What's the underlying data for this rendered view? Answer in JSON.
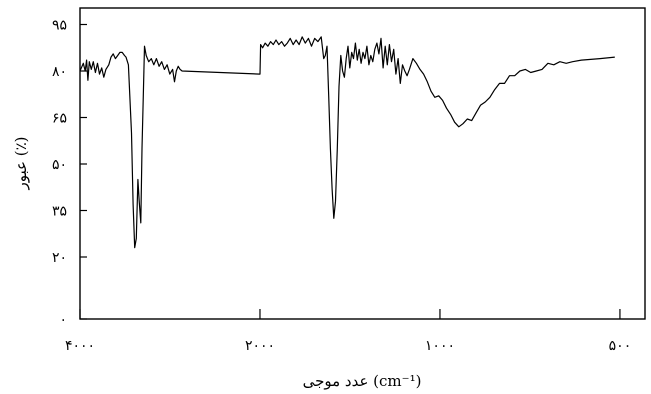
{
  "chart_data": {
    "type": "line",
    "xlabel": "عدد موجی (cm⁻¹)",
    "ylabel": "عبور (٪)",
    "x_tick_labels": [
      "۴۰۰۰",
      "۲۰۰۰",
      "۱۰۰۰",
      "۵۰۰"
    ],
    "x_tick_values": [
      4000,
      2000,
      1000,
      500
    ],
    "y_tick_labels": [
      "۰",
      "۲۰",
      "۳۵",
      "۵۰",
      "۶۵",
      "۸۰",
      "۹۵"
    ],
    "y_tick_values": [
      0,
      20,
      35,
      50,
      65,
      80,
      95
    ],
    "ylim": [
      0,
      100
    ],
    "grid": false,
    "legend": "none",
    "line_color": "#000000",
    "series": [
      {
        "points": [
          [
            4000,
            80.0
          ],
          [
            3950,
            82.5
          ],
          [
            3920,
            80.0
          ],
          [
            3900,
            83.5
          ],
          [
            3880,
            77.0
          ],
          [
            3860,
            83.0
          ],
          [
            3830,
            80.5
          ],
          [
            3800,
            83.0
          ],
          [
            3770,
            79.5
          ],
          [
            3740,
            82.5
          ],
          [
            3710,
            79.0
          ],
          [
            3680,
            81.0
          ],
          [
            3650,
            78.0
          ],
          [
            3620,
            80.5
          ],
          [
            3580,
            82.0
          ],
          [
            3550,
            84.5
          ],
          [
            3520,
            85.5
          ],
          [
            3490,
            84.0
          ],
          [
            3460,
            85.0
          ],
          [
            3430,
            86.0
          ],
          [
            3400,
            86.0
          ],
          [
            3370,
            85.0
          ],
          [
            3350,
            84.5
          ],
          [
            3320,
            82.0
          ],
          [
            3280,
            60.0
          ],
          [
            3260,
            37.0
          ],
          [
            3240,
            23.0
          ],
          [
            3220,
            26.0
          ],
          [
            3200,
            45.0
          ],
          [
            3185,
            38.0
          ],
          [
            3165,
            31.0
          ],
          [
            3150,
            55.0
          ],
          [
            3135,
            72.0
          ],
          [
            3120,
            88.0
          ],
          [
            3100,
            85.0
          ],
          [
            3070,
            83.0
          ],
          [
            3040,
            84.0
          ],
          [
            3010,
            82.0
          ],
          [
            2980,
            84.0
          ],
          [
            2950,
            81.5
          ],
          [
            2920,
            83.0
          ],
          [
            2890,
            80.5
          ],
          [
            2860,
            82.0
          ],
          [
            2830,
            79.0
          ],
          [
            2800,
            80.5
          ],
          [
            2780,
            76.5
          ],
          [
            2760,
            80.0
          ],
          [
            2740,
            81.5
          ],
          [
            2720,
            80.5
          ],
          [
            2700,
            80.0
          ],
          [
            2000,
            79.0
          ],
          [
            1995,
            88.5
          ],
          [
            1980,
            87.5
          ],
          [
            1960,
            89.0
          ],
          [
            1940,
            88.0
          ],
          [
            1920,
            89.5
          ],
          [
            1900,
            88.5
          ],
          [
            1880,
            90.0
          ],
          [
            1860,
            88.5
          ],
          [
            1840,
            89.5
          ],
          [
            1820,
            88.0
          ],
          [
            1800,
            89.0
          ],
          [
            1780,
            90.5
          ],
          [
            1760,
            88.5
          ],
          [
            1740,
            90.0
          ],
          [
            1720,
            88.5
          ],
          [
            1700,
            91.0
          ],
          [
            1680,
            89.0
          ],
          [
            1660,
            90.5
          ],
          [
            1640,
            88.0
          ],
          [
            1620,
            90.5
          ],
          [
            1600,
            89.5
          ],
          [
            1580,
            91.0
          ],
          [
            1565,
            84.0
          ],
          [
            1555,
            85.0
          ],
          [
            1545,
            88.0
          ],
          [
            1535,
            72.0
          ],
          [
            1525,
            55.0
          ],
          [
            1515,
            42.0
          ],
          [
            1505,
            32.5
          ],
          [
            1495,
            38.0
          ],
          [
            1485,
            55.0
          ],
          [
            1475,
            75.0
          ],
          [
            1465,
            85.0
          ],
          [
            1455,
            80.0
          ],
          [
            1445,
            78.0
          ],
          [
            1435,
            84.0
          ],
          [
            1425,
            88.0
          ],
          [
            1415,
            81.0
          ],
          [
            1405,
            86.0
          ],
          [
            1395,
            84.0
          ],
          [
            1385,
            89.0
          ],
          [
            1375,
            83.5
          ],
          [
            1365,
            87.0
          ],
          [
            1355,
            82.5
          ],
          [
            1345,
            86.0
          ],
          [
            1335,
            84.0
          ],
          [
            1325,
            88.0
          ],
          [
            1315,
            82.0
          ],
          [
            1305,
            85.0
          ],
          [
            1295,
            83.0
          ],
          [
            1285,
            87.0
          ],
          [
            1275,
            89.0
          ],
          [
            1265,
            85.5
          ],
          [
            1255,
            90.5
          ],
          [
            1245,
            81.0
          ],
          [
            1235,
            88.0
          ],
          [
            1225,
            82.0
          ],
          [
            1215,
            88.5
          ],
          [
            1205,
            83.0
          ],
          [
            1195,
            87.0
          ],
          [
            1185,
            79.0
          ],
          [
            1175,
            84.0
          ],
          [
            1165,
            76.0
          ],
          [
            1155,
            82.0
          ],
          [
            1145,
            80.0
          ],
          [
            1135,
            78.5
          ],
          [
            1125,
            80.5
          ],
          [
            1110,
            84.0
          ],
          [
            1095,
            82.5
          ],
          [
            1080,
            80.5
          ],
          [
            1065,
            79.0
          ],
          [
            1050,
            76.5
          ],
          [
            1035,
            73.5
          ],
          [
            1020,
            71.5
          ],
          [
            1005,
            72.0
          ],
          [
            990,
            70.5
          ],
          [
            975,
            68.0
          ],
          [
            960,
            66.0
          ],
          [
            945,
            63.5
          ],
          [
            930,
            62.0
          ],
          [
            915,
            63.0
          ],
          [
            900,
            64.5
          ],
          [
            885,
            64.0
          ],
          [
            870,
            66.5
          ],
          [
            855,
            69.0
          ],
          [
            840,
            70.0
          ],
          [
            825,
            71.5
          ],
          [
            810,
            74.0
          ],
          [
            795,
            76.0
          ],
          [
            780,
            76.0
          ],
          [
            765,
            78.5
          ],
          [
            750,
            78.5
          ],
          [
            735,
            80.0
          ],
          [
            720,
            80.5
          ],
          [
            705,
            79.5
          ],
          [
            690,
            80.0
          ],
          [
            675,
            80.5
          ],
          [
            660,
            82.5
          ],
          [
            645,
            82.0
          ],
          [
            630,
            83.0
          ],
          [
            615,
            82.5
          ],
          [
            600,
            83.0
          ],
          [
            580,
            83.5
          ],
          [
            540,
            84.0
          ],
          [
            510,
            84.5
          ]
        ]
      }
    ]
  }
}
